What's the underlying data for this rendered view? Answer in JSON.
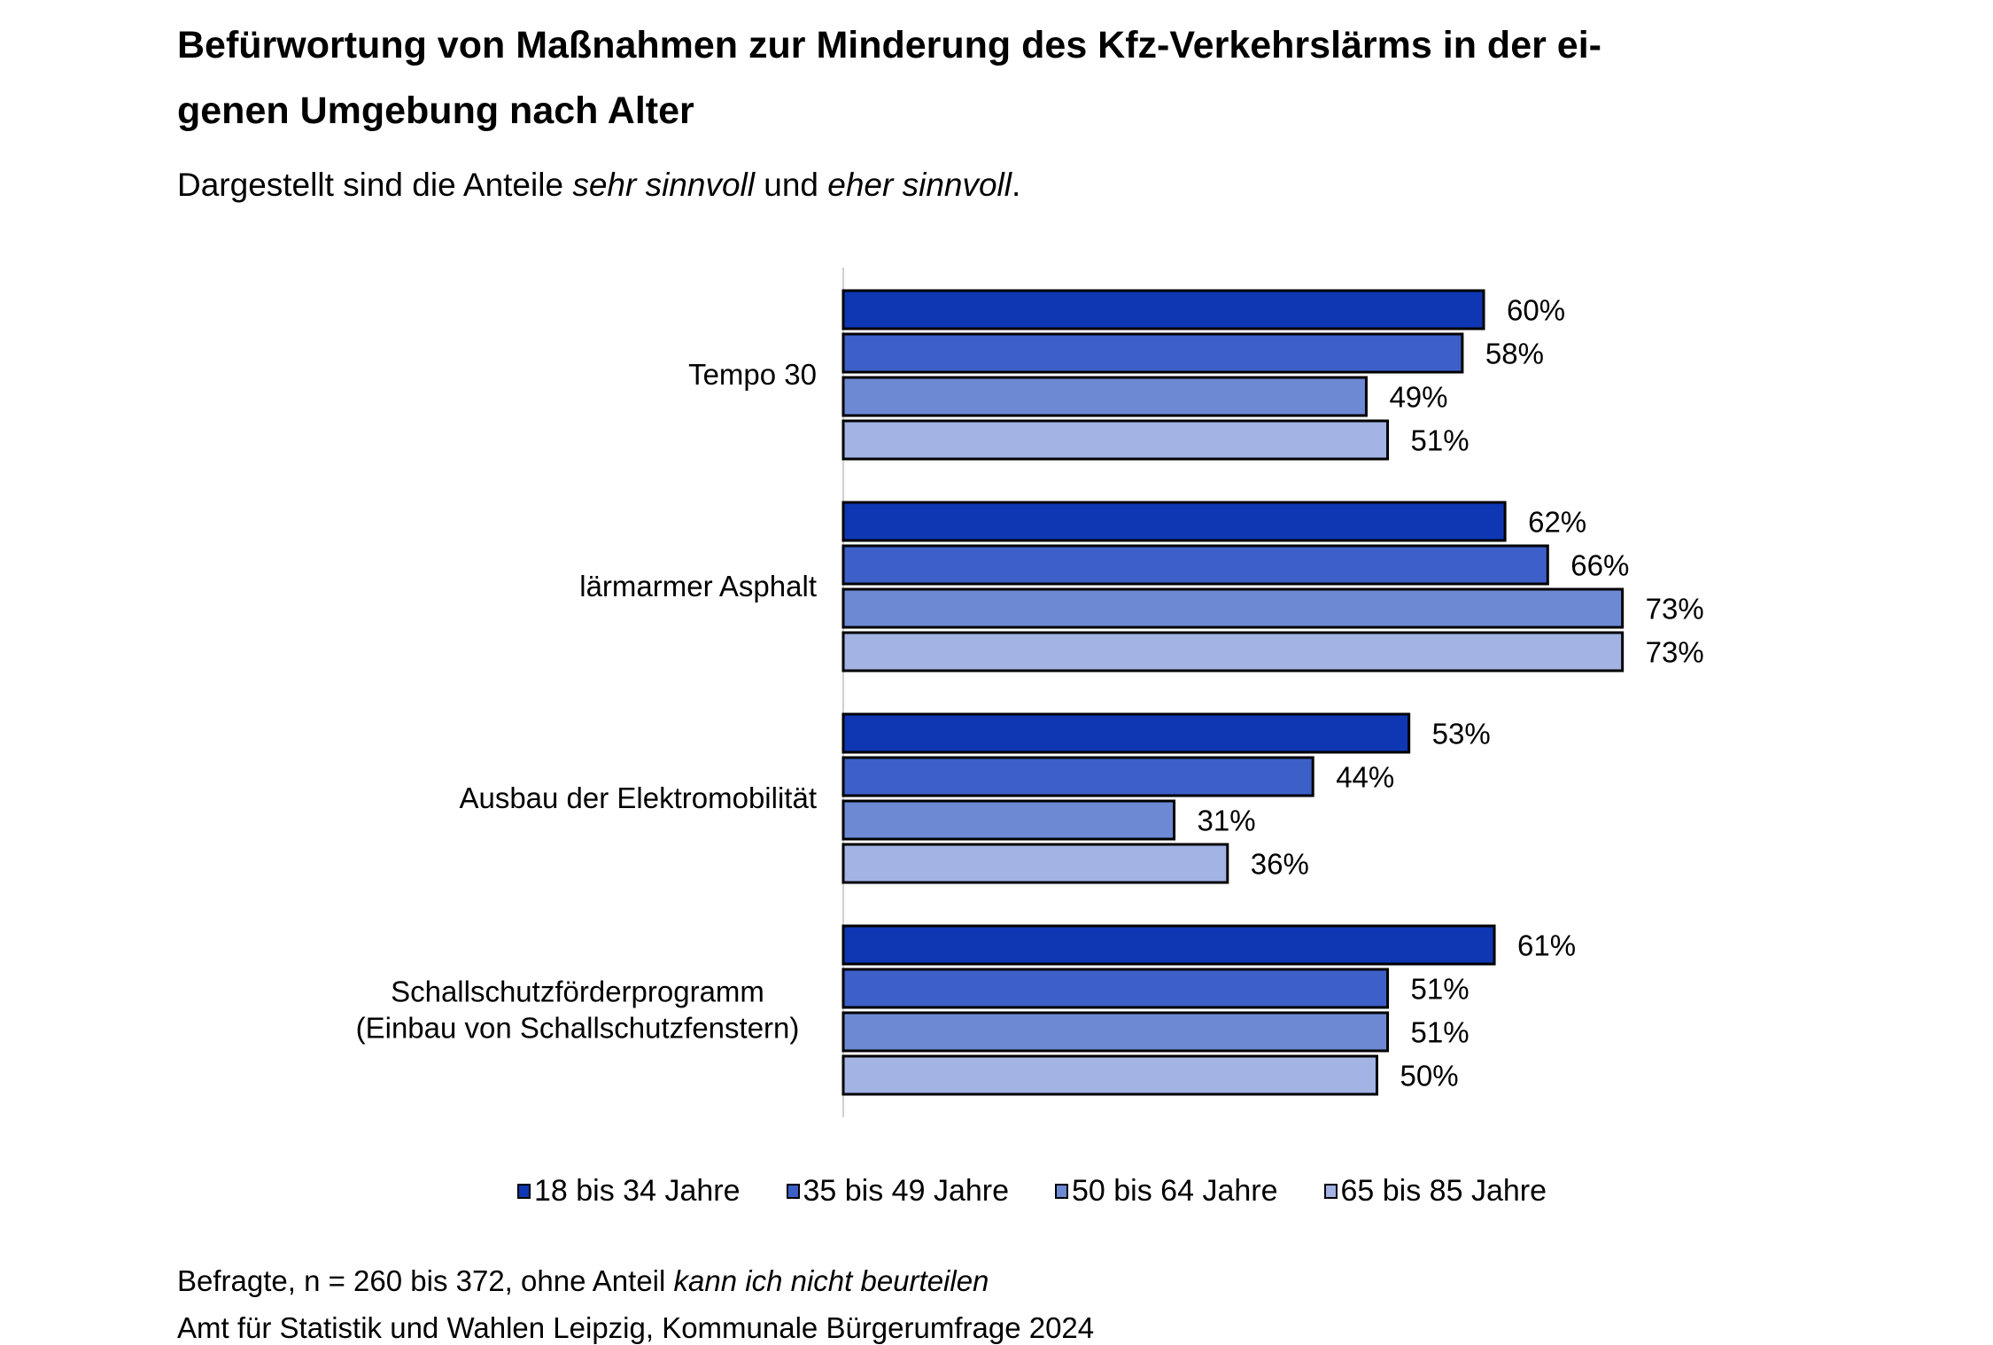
{
  "chart_data": {
    "type": "bar",
    "orientation": "horizontal",
    "title_line1": "Befürwortung von Maßnahmen zur Minderung des Kfz-Verkehrslärms in der ei-",
    "title_line2": "genen Umgebung nach Alter",
    "subtitle": {
      "pre": "Dargestellt sind die Anteile ",
      "em1": "sehr sinnvoll",
      "mid": " und ",
      "em2": "eher sinnvoll",
      "post": "."
    },
    "categories": [
      "Tempo 30",
      "lärmarmer Asphalt",
      "Ausbau der Elektromobilität",
      "Schallschutzförderprogramm\n(Einbau von Schallschutzfenstern)"
    ],
    "category_lines": [
      [
        "Tempo 30"
      ],
      [
        "lärmarmer Asphalt"
      ],
      [
        "Ausbau der Elektromobilität"
      ],
      [
        "Schallschutzförderprogramm",
        "(Einbau von Schallschutzfenstern)"
      ]
    ],
    "series": [
      {
        "name": "18 bis 34 Jahre",
        "color": "#0f37b4",
        "values": [
          60,
          62,
          53,
          61
        ]
      },
      {
        "name": "35 bis 49 Jahre",
        "color": "#3d60c8",
        "values": [
          58,
          66,
          44,
          51
        ]
      },
      {
        "name": "50 bis 64 Jahre",
        "color": "#6e89d4",
        "values": [
          49,
          73,
          31,
          51
        ]
      },
      {
        "name": "65 bis 85 Jahre",
        "color": "#a2b3e4",
        "values": [
          51,
          73,
          36,
          50
        ]
      }
    ],
    "value_suffix": "%",
    "xlim": [
      0,
      100
    ],
    "grid": false,
    "legend_position": "bottom"
  },
  "footer": {
    "note_pre": "Befragte, n = 260 bis 372, ohne Anteil ",
    "note_em": "kann ich nicht beurteilen",
    "source": "Amt für Statistik und Wahlen Leipzig, Kommunale Bürgerumfrage 2024"
  }
}
